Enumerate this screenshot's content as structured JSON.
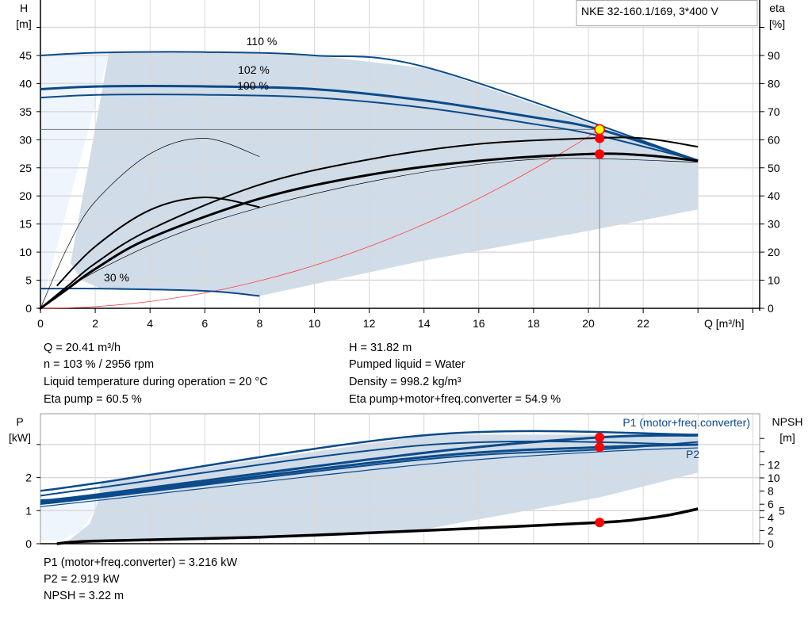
{
  "colors": {
    "curve_blue": "#0b4a8a",
    "shade": "#d0dce8",
    "shade_light": "#eef5fc",
    "grid": "#d9d9d9",
    "eta": "#000000",
    "system": "#ff4040",
    "point": "#ff0000",
    "op_point": "#ffff00"
  },
  "chart_data": [
    {
      "type": "line",
      "title": "NKE 32-160.1/169, 3*400 V",
      "xlabel": "Q [m³/h]",
      "ylabel": "H\n[m]",
      "ylabel_unit": "[m]",
      "ylabel_sym": "H",
      "y2label_sym": "eta",
      "y2label_unit": "[%]",
      "xlim": [
        0,
        26
      ],
      "ylim": [
        0,
        50
      ],
      "y2lim": [
        0,
        100
      ],
      "xticks": [
        "0",
        "2",
        "4",
        "6",
        "8",
        "10",
        "12",
        "14",
        "16",
        "18",
        "20",
        "22"
      ],
      "yticks": [
        "0",
        "5",
        "10",
        "15",
        "20",
        "25",
        "30",
        "35",
        "40",
        "45"
      ],
      "y2ticks": [
        "0",
        "10",
        "20",
        "30",
        "40",
        "50",
        "60",
        "70",
        "80",
        "90"
      ],
      "grid": true,
      "series": [
        {
          "name": "110 %",
          "axis": "H",
          "x": [
            0,
            2.2,
            6,
            10,
            14.3,
            24
          ],
          "y": [
            45,
            45.5,
            45.6,
            45,
            42.6,
            26.3
          ]
        },
        {
          "name": "102 %",
          "axis": "H",
          "x": [
            0,
            2.2,
            6,
            10,
            14,
            18,
            20.41,
            24
          ],
          "y": [
            39,
            39.5,
            39.5,
            39,
            37,
            34,
            31.82,
            26.3
          ]
        },
        {
          "name": "100 %",
          "axis": "H",
          "x": [
            0,
            2.2,
            6,
            10,
            14,
            18,
            20.41,
            24
          ],
          "y": [
            37.5,
            38,
            38,
            37.5,
            35.7,
            32.8,
            30.7,
            26.3
          ]
        },
        {
          "name": "30 %",
          "axis": "H",
          "x": [
            0,
            2.2,
            6,
            8
          ],
          "y": [
            3.5,
            3.5,
            3.1,
            2.2
          ]
        },
        {
          "axis": "eta",
          "x": [
            0,
            1,
            2,
            4,
            8,
            12,
            16,
            20,
            22,
            24
          ],
          "y": [
            0,
            8,
            16,
            28,
            44,
            53,
            58.5,
            60.5,
            60.5,
            57.5
          ]
        },
        {
          "axis": "eta",
          "x": [
            0,
            1,
            2,
            4,
            8,
            12,
            16,
            20,
            22,
            24
          ],
          "y": [
            0,
            7,
            14,
            25,
            39,
            47.5,
            52.5,
            54.9,
            54.5,
            52.5
          ]
        },
        {
          "axis": "eta",
          "x": [
            0.6,
            2,
            4,
            6,
            8
          ],
          "y": [
            8,
            22,
            35,
            39.5,
            36
          ]
        },
        {
          "axis": "eta",
          "x": [
            0,
            1,
            2,
            4,
            6,
            8
          ],
          "y": [
            0,
            22,
            38,
            55,
            60.5,
            54
          ]
        }
      ],
      "system_curve": {
        "q": 20.41,
        "h": 31.82
      },
      "operating_point": {
        "Q": 20.41,
        "H": 31.82,
        "eta_pump": 60.5,
        "eta_total": 54.9
      }
    },
    {
      "type": "line",
      "ylabel_sym": "P",
      "ylabel_unit": "[kW]",
      "y2label_sym": "NPSH",
      "y2label_unit": "[m]",
      "xlim": [
        0,
        26
      ],
      "ylim": [
        0,
        3.9
      ],
      "y2lim": [
        0,
        19.6
      ],
      "yticks": [
        "0",
        "1",
        "2"
      ],
      "y2ticks": [
        "0",
        "2",
        "4",
        "5",
        "6",
        "8",
        "10",
        "12"
      ],
      "grid": true,
      "series": [
        {
          "name": "P1 (motor+freq.converter)",
          "axis": "P",
          "x": [
            0,
            2.2,
            14.3,
            24
          ],
          "y": [
            1.6,
            1.85,
            3.3,
            3.3
          ]
        },
        {
          "axis": "P",
          "x": [
            0,
            2.2,
            14.3,
            24
          ],
          "y": [
            1.45,
            1.7,
            3.0,
            3.0
          ]
        },
        {
          "axis": "P",
          "x": [
            0,
            2.2,
            14,
            20.41,
            24
          ],
          "y": [
            1.3,
            1.5,
            2.75,
            3.216,
            3.28
          ]
        },
        {
          "axis": "P",
          "x": [
            0,
            2.2,
            14,
            20.41,
            24
          ],
          "y": [
            1.25,
            1.45,
            2.62,
            2.919,
            3.0
          ]
        },
        {
          "axis": "P",
          "x": [
            0,
            2.2,
            14,
            20.41,
            24
          ],
          "y": [
            1.2,
            1.4,
            2.55,
            2.85,
            3.08
          ]
        },
        {
          "name": "P2",
          "axis": "P",
          "x": [
            0,
            2.2,
            14,
            20.41,
            24
          ],
          "y": [
            1.12,
            1.32,
            2.4,
            2.78,
            2.9
          ]
        },
        {
          "axis": "NPSH",
          "x": [
            0.6,
            2,
            8,
            14,
            20.41,
            22,
            23,
            24
          ],
          "y": [
            0,
            0.4,
            1.0,
            2.0,
            3.22,
            3.8,
            4.4,
            5.3
          ]
        }
      ],
      "operating_point": {
        "P1": 3.216,
        "P2": 2.919,
        "NPSH": 3.22
      }
    }
  ],
  "info": {
    "left": [
      "Q = 20.41 m³/h",
      "n = 103 % / 2956 rpm",
      "Liquid temperature during operation = 20 °C",
      "Eta pump = 60.5 %"
    ],
    "right": [
      "H = 31.82 m",
      "Pumped liquid = Water",
      "Density = 998.2 kg/m³",
      "Eta pump+motor+freq.converter = 54.9 %"
    ],
    "bottom": [
      "P1 (motor+freq.converter) = 3.216 kW",
      "P2 = 2.919 kW",
      "NPSH = 3.22 m"
    ]
  }
}
